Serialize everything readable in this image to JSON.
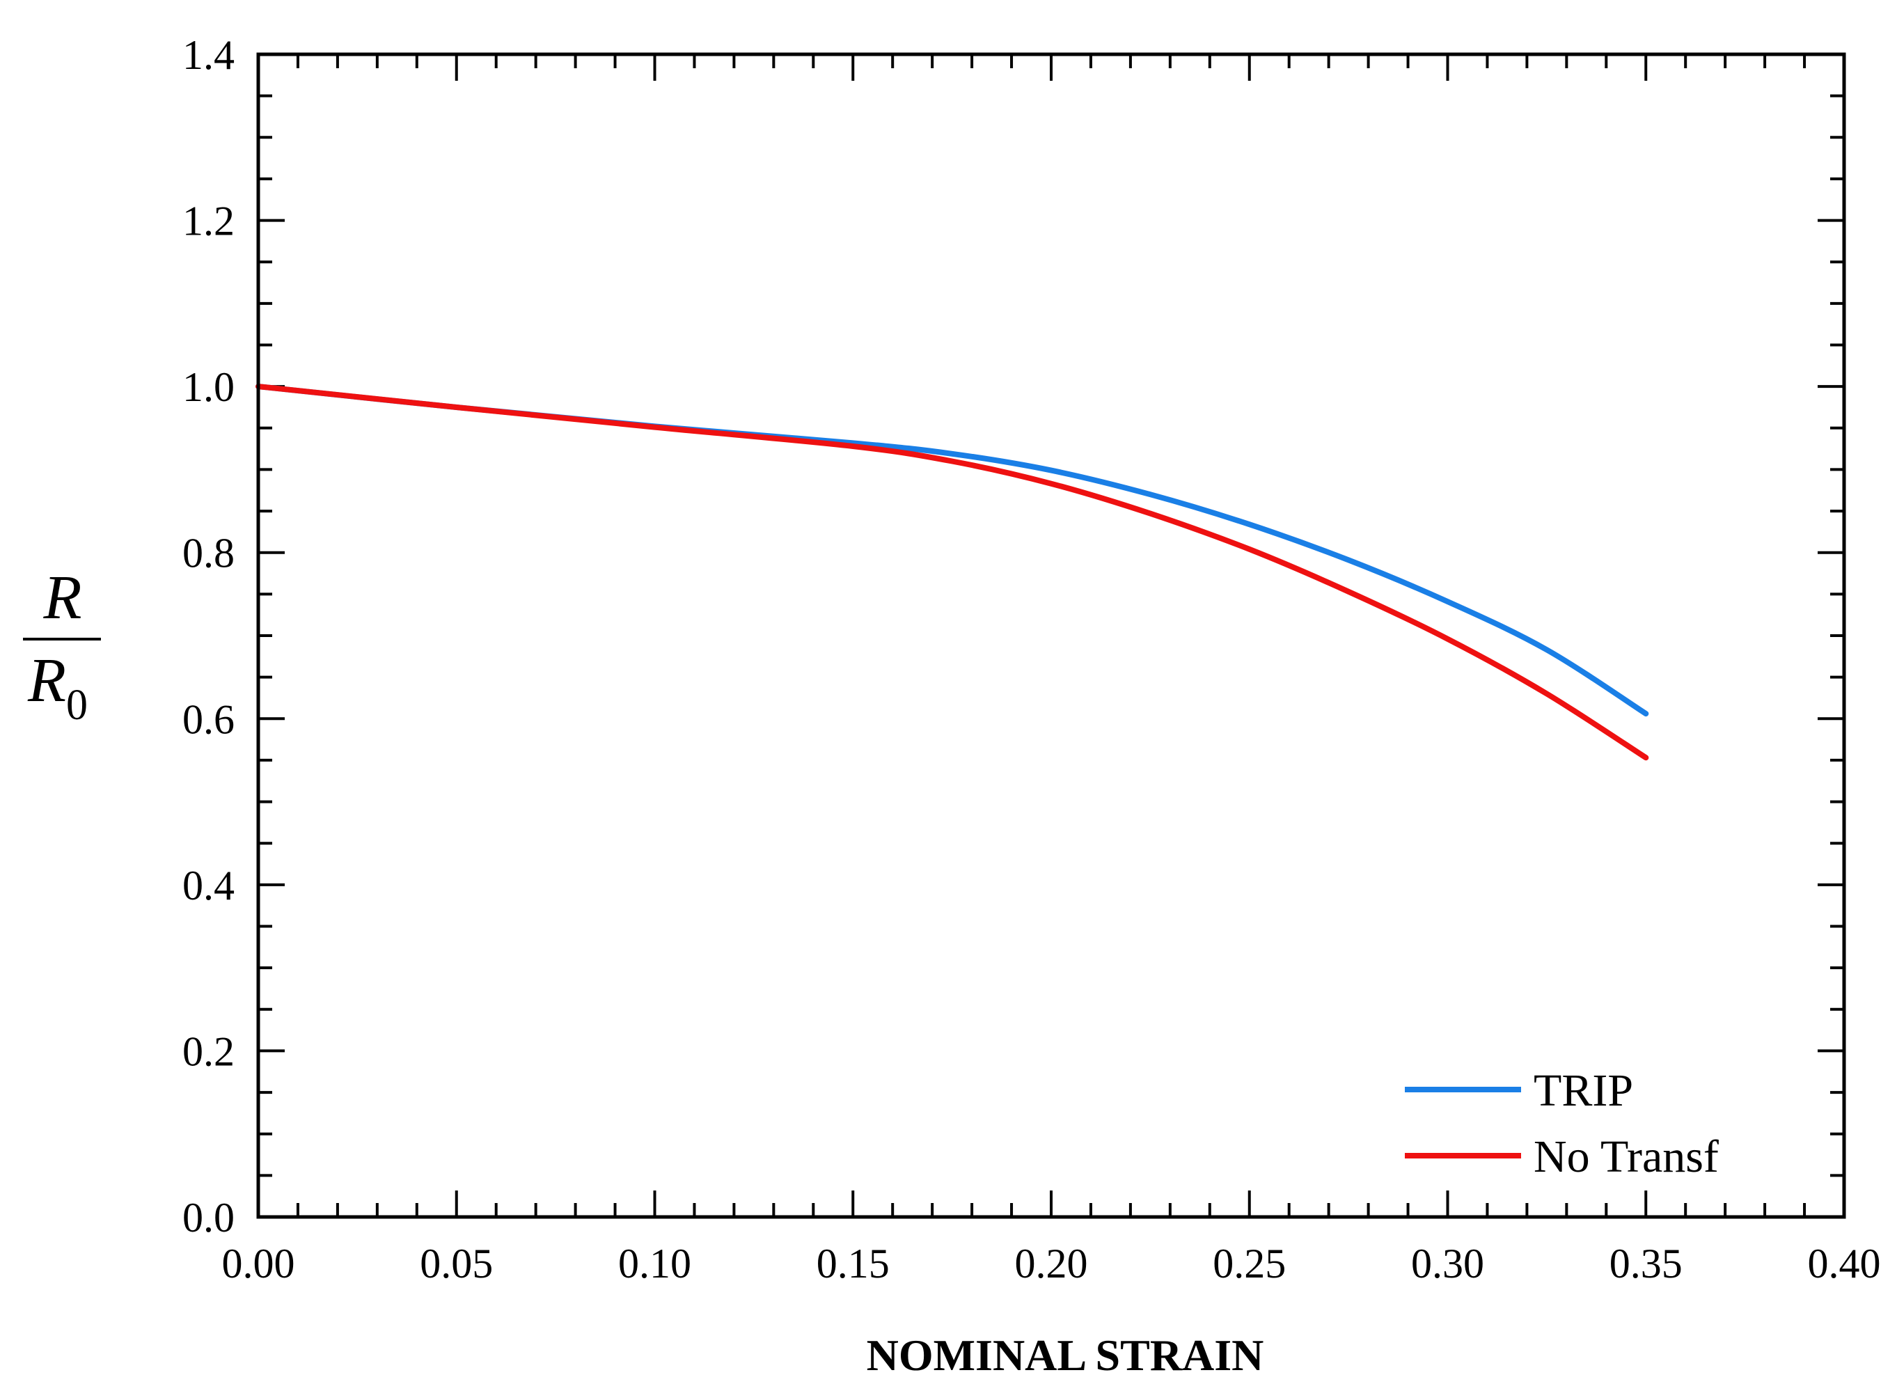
{
  "chart_data": {
    "type": "line",
    "xlabel": "NOMINAL STRAIN",
    "ylabel": {
      "main": "R",
      "denominator": "R",
      "subscript": "0"
    },
    "xlim": [
      0.0,
      0.4
    ],
    "ylim": [
      0.0,
      1.4
    ],
    "x_ticks": [
      "0.00",
      "0.05",
      "0.10",
      "0.15",
      "0.20",
      "0.25",
      "0.30",
      "0.35",
      "0.40"
    ],
    "y_ticks": [
      "0.0",
      "0.2",
      "0.4",
      "0.6",
      "0.8",
      "1.0",
      "1.2",
      "1.4"
    ],
    "grid": false,
    "legend_position": "bottom-right",
    "series": [
      {
        "name": "TRIP",
        "color": "#1a7fe6",
        "x": [
          0.0,
          0.05,
          0.1,
          0.15,
          0.175,
          0.2,
          0.225,
          0.25,
          0.275,
          0.3,
          0.325,
          0.35
        ],
        "y": [
          1.0,
          0.975,
          0.952,
          0.932,
          0.919,
          0.899,
          0.87,
          0.834,
          0.791,
          0.741,
          0.683,
          0.606
        ]
      },
      {
        "name": "No Transf",
        "color": "#ee1111",
        "x": [
          0.0,
          0.05,
          0.1,
          0.15,
          0.175,
          0.2,
          0.225,
          0.25,
          0.275,
          0.3,
          0.325,
          0.35
        ],
        "y": [
          1.0,
          0.975,
          0.951,
          0.928,
          0.91,
          0.883,
          0.847,
          0.804,
          0.753,
          0.696,
          0.63,
          0.553
        ]
      }
    ]
  }
}
